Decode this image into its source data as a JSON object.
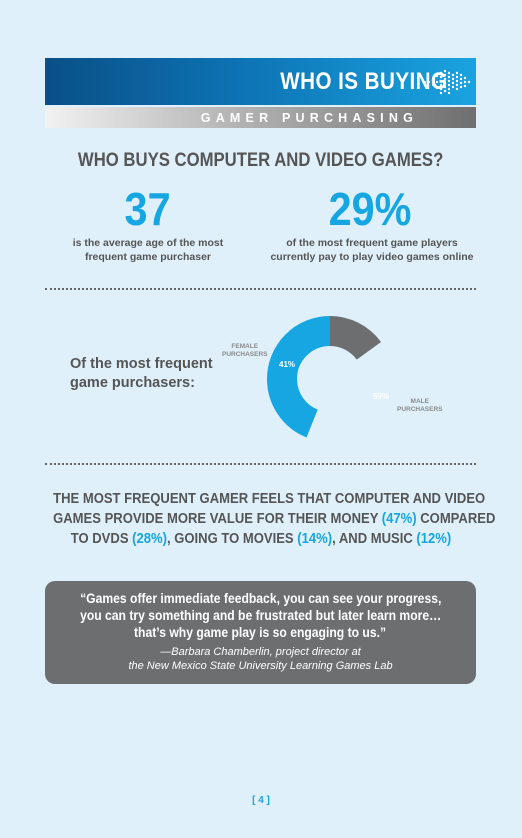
{
  "header": {
    "title": "WHO IS BUYING",
    "subtitle": "GAMER PURCHASING"
  },
  "section": {
    "heading": "WHO BUYS COMPUTER AND VIDEO GAMES?"
  },
  "stats": [
    {
      "value": "37",
      "caption_line1": "is the average age of the most",
      "caption_line2": "frequent game purchaser"
    },
    {
      "value": "29%",
      "caption_line1": "of the most frequent game players",
      "caption_line2": "currently pay to play video games online"
    }
  ],
  "purchasers": {
    "label_line1": "Of the most frequent",
    "label_line2": "game purchasers:"
  },
  "chart_data": {
    "type": "pie",
    "categories": [
      "MALE PURCHASERS",
      "FEMALE PURCHASERS"
    ],
    "values": [
      59,
      41
    ],
    "value_labels": [
      "59%",
      "41%"
    ],
    "label_lines": [
      [
        "MALE",
        "PURCHASERS"
      ],
      [
        "FEMALE",
        "PURCHASERS"
      ]
    ],
    "colors": [
      "#16a6e1",
      "#6d6e70"
    ],
    "title": ""
  },
  "summary": {
    "line1": "THE MOST FREQUENT GAMER FEELS THAT COMPUTER AND VIDEO",
    "line2_a": "GAMES PROVIDE MORE VALUE FOR THEIR MONEY ",
    "line2_b": "(47%)",
    "line2_c": " COMPARED",
    "line3_a": "TO DVDS ",
    "line3_b": "(28%)",
    "line3_c": ", GOING TO MOVIES ",
    "line3_d": "(14%)",
    "line3_e": ", AND MUSIC ",
    "line3_f": "(12%)"
  },
  "quote": {
    "line1": "“Games offer immediate feedback, you can see your progress,",
    "line2": "you can try something and be frustrated but later learn more…",
    "line3": "that’s why game play is so engaging to us.”",
    "attribution_line1": "—Barbara Chamberlin, project director at",
    "attribution_line2": "the New Mexico State University Learning Games Lab"
  },
  "footer": {
    "page_number": "[ 4 ]"
  },
  "colors": {
    "accent": "#16a6e1",
    "text_gray": "#555555",
    "background": "#dff0fa",
    "quote_box": "#6d6e70"
  }
}
